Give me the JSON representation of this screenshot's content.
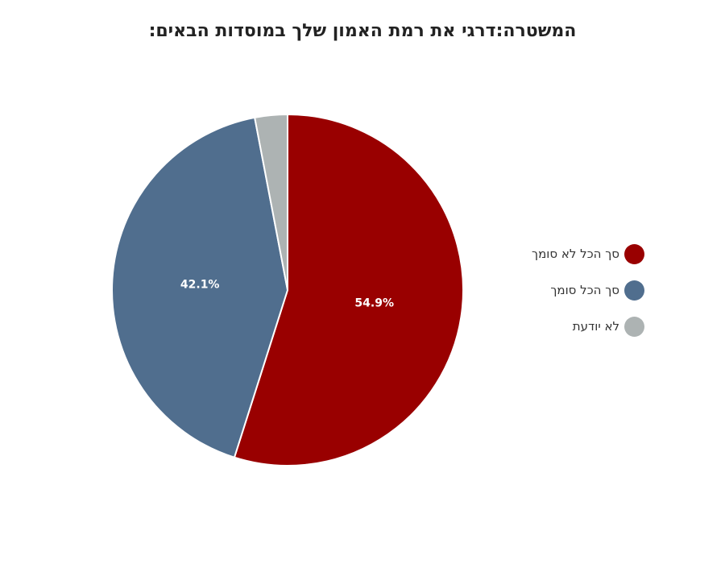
{
  "chart_data": {
    "type": "pie",
    "title": "המשטרה:דרגי את רמת האמון שלך במוסדות הבאים:",
    "categories": [
      "סך הכל לא סומך",
      "סך הכל סומך",
      "לא יודעת"
    ],
    "values": [
      54.9,
      42.1,
      3.0
    ],
    "data_labels": [
      "54.9%",
      "42.1%",
      ""
    ],
    "colors": [
      "#990000",
      "#506e8e",
      "#adb3b3"
    ],
    "legend_position": "right",
    "start_angle": "top",
    "direction": "clockwise"
  }
}
